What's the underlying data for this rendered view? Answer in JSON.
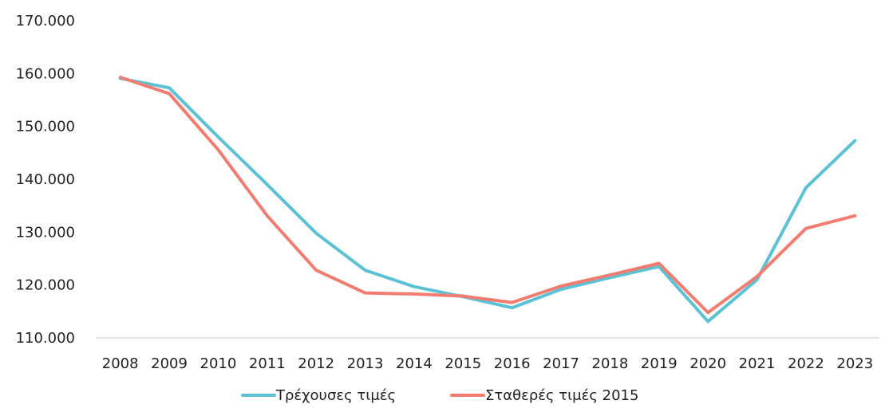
{
  "chart_data": {
    "type": "line",
    "title": "",
    "xlabel": "",
    "ylabel": "",
    "categories": [
      "2008",
      "2009",
      "2010",
      "2011",
      "2012",
      "2013",
      "2014",
      "2015",
      "2016",
      "2017",
      "2018",
      "2019",
      "2020",
      "2021",
      "2022",
      "2023"
    ],
    "y_tick_labels": [
      "110.000",
      "120.000",
      "130.000",
      "140.000",
      "150.000",
      "160.000",
      "170.000"
    ],
    "y_ticks": [
      110000,
      120000,
      130000,
      140000,
      150000,
      160000,
      170000
    ],
    "ylim": [
      110000,
      170000
    ],
    "grid": false,
    "legend_position": "bottom",
    "series": [
      {
        "name": "Τρέχουσες τιμές",
        "color": "#5bc2d6",
        "values": [
          159100,
          157300,
          148000,
          139000,
          129800,
          122800,
          119700,
          117800,
          115700,
          119200,
          121400,
          123500,
          113100,
          121000,
          138400,
          147300
        ]
      },
      {
        "name": "Σταθερές τιμές 2015",
        "color": "#f27c6f",
        "values": [
          159300,
          156200,
          145600,
          133100,
          122800,
          118500,
          118300,
          117900,
          116700,
          119800,
          121900,
          124100,
          114800,
          121600,
          130700,
          133100
        ]
      }
    ]
  }
}
